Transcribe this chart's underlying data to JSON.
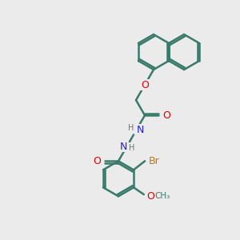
{
  "bg_color": "#ebebeb",
  "bond_color": "#3a7a6a",
  "line_width": 1.8,
  "atom_colors": {
    "O": "#e00000",
    "N": "#2020e0",
    "Br": "#b87820",
    "C": "#3a7a6a",
    "H": "#707070"
  },
  "font_size": 8
}
